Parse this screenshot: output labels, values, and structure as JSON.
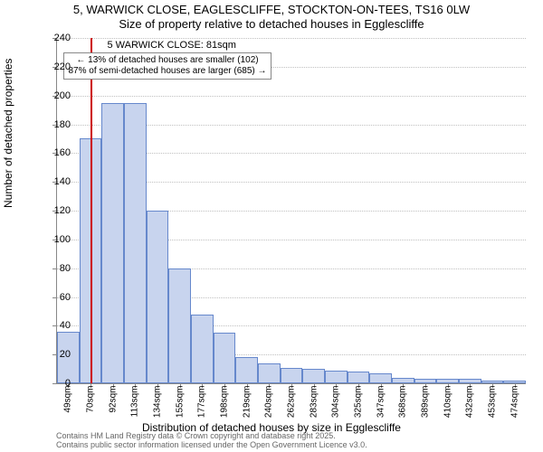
{
  "title": "5, WARWICK CLOSE, EAGLESCLIFFE, STOCKTON-ON-TEES, TS16 0LW",
  "subtitle": "Size of property relative to detached houses in Egglescliffe",
  "ylabel": "Number of detached properties",
  "xlabel": "Distribution of detached houses by size in Egglescliffe",
  "credits_line1": "Contains HM Land Registry data © Crown copyright and database right 2025.",
  "credits_line2": "Contains public sector information licensed under the Open Government Licence v3.0.",
  "chart": {
    "type": "histogram",
    "ylim": [
      0,
      240
    ],
    "ytick_step": 20,
    "xticks": [
      "49sqm",
      "70sqm",
      "92sqm",
      "113sqm",
      "134sqm",
      "155sqm",
      "177sqm",
      "198sqm",
      "219sqm",
      "240sqm",
      "262sqm",
      "283sqm",
      "304sqm",
      "325sqm",
      "347sqm",
      "368sqm",
      "389sqm",
      "410sqm",
      "432sqm",
      "453sqm",
      "474sqm"
    ],
    "values": [
      36,
      170,
      195,
      195,
      120,
      80,
      48,
      35,
      18,
      14,
      11,
      10,
      9,
      8,
      7,
      4,
      3,
      3,
      3,
      2,
      2
    ],
    "bar_fill": "#c8d4ee",
    "bar_border": "#6688cc",
    "grid_color": "#c0c0c0",
    "axis_color": "#888888",
    "background": "#ffffff",
    "refline": {
      "x_index": 1.52,
      "color": "#cc0000",
      "label_title": "5 WARWICK CLOSE: 81sqm",
      "label_line1": "← 13% of detached houses are smaller (102)",
      "label_line2": "87% of semi-detached houses are larger (685) →"
    }
  }
}
